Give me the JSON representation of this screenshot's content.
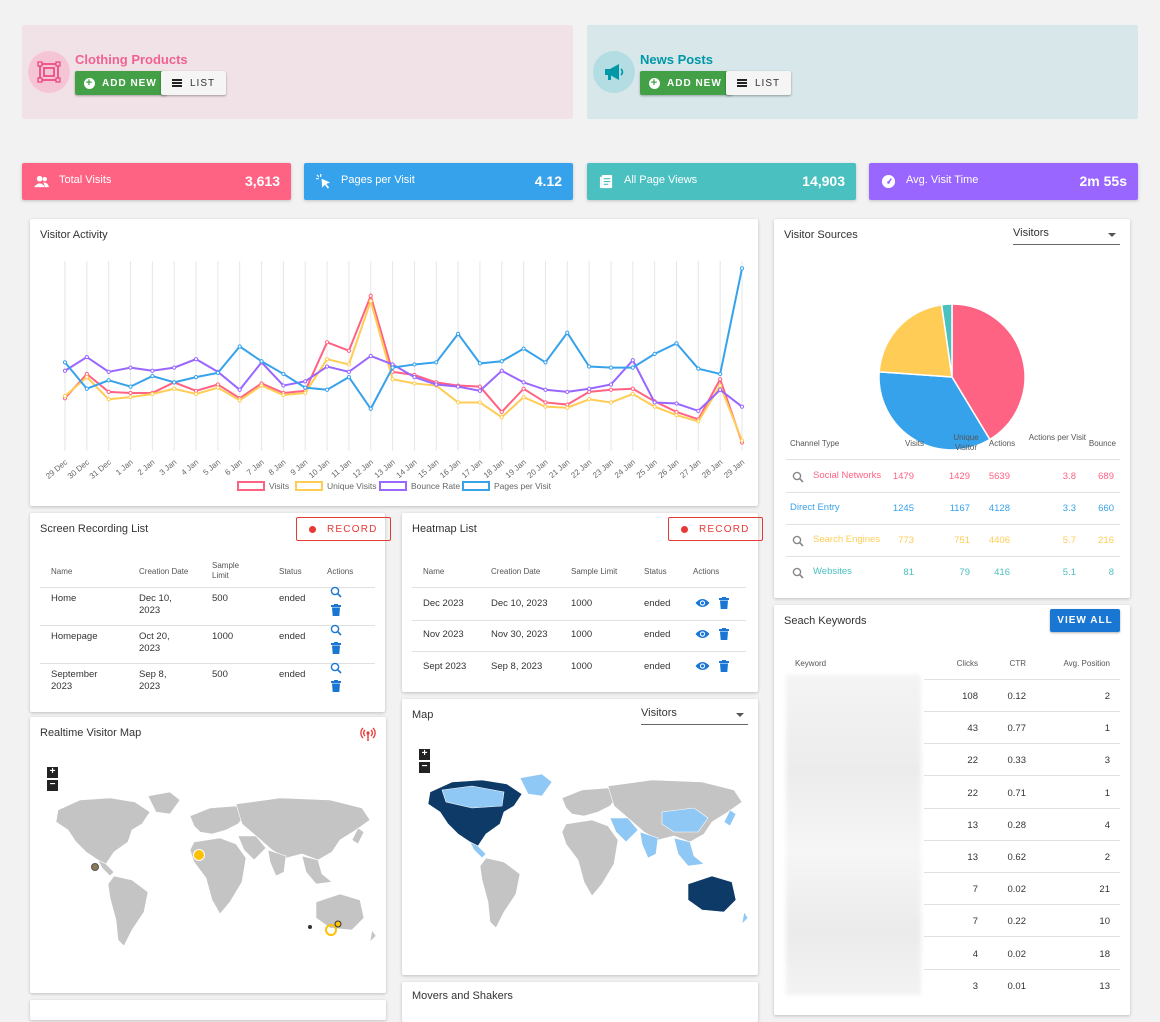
{
  "shortcuts": [
    {
      "title": "Clothing Products",
      "add_label": "ADD NEW",
      "list_label": "LIST",
      "color": "#f06292",
      "bg": "#f1e2e7"
    },
    {
      "title": "News Posts",
      "add_label": "ADD NEW",
      "list_label": "LIST",
      "color": "#0097a7",
      "bg": "#d7e7ea"
    }
  ],
  "stats": [
    {
      "label": "Total Visits",
      "value": "3,613",
      "color": "#ff6384",
      "icon": "people-icon"
    },
    {
      "label": "Pages per Visit",
      "value": "4.12",
      "color": "#36a2eb",
      "icon": "cursor-click-icon"
    },
    {
      "label": "All Page Views",
      "value": "14,903",
      "color": "#4bc0c0",
      "icon": "document-icon"
    },
    {
      "label": "Avg. Visit Time",
      "value": "2m 55s",
      "color": "#9966ff",
      "icon": "speedometer-icon"
    }
  ],
  "visitor_activity": {
    "title": "Visitor Activity",
    "chart_data": {
      "type": "line",
      "categories": [
        "29 Dec",
        "30 Dec",
        "31 Dec",
        "1 Jan",
        "2 Jan",
        "3 Jan",
        "4 Jan",
        "5 Jan",
        "6 Jan",
        "7 Jan",
        "8 Jan",
        "9 Jan",
        "10 Jan",
        "11 Jan",
        "12 Jan",
        "13 Jan",
        "14 Jan",
        "15 Jan",
        "16 Jan",
        "17 Jan",
        "18 Jan",
        "19 Jan",
        "20 Jan",
        "21 Jan",
        "22 Jan",
        "23 Jan",
        "24 Jan",
        "25 Jan",
        "26 Jan",
        "27 Jan",
        "28 Jan",
        "29 Jan"
      ],
      "series": [
        {
          "name": "Visits",
          "color": "#ff6384",
          "values": [
            50,
            73,
            56,
            55,
            55,
            65,
            57,
            63,
            50,
            64,
            55,
            57,
            103,
            95,
            147,
            75,
            72,
            65,
            62,
            61,
            37,
            59,
            46,
            44,
            56,
            58,
            59,
            47,
            37,
            30,
            68,
            8
          ]
        },
        {
          "name": "Unique Visits",
          "color": "#ffcd56",
          "values": [
            52,
            70,
            49,
            51,
            54,
            59,
            54,
            60,
            48,
            62,
            53,
            55,
            87,
            82,
            142,
            68,
            64,
            62,
            46,
            46,
            32,
            51,
            42,
            41,
            49,
            46,
            54,
            42,
            34,
            28,
            62,
            10
          ]
        },
        {
          "name": "Bounce Rate",
          "color": "#9966ff",
          "values": [
            76,
            89,
            75,
            79,
            76,
            79,
            87,
            75,
            58,
            84,
            62,
            66,
            80,
            75,
            90,
            82,
            70,
            63,
            61,
            57,
            76,
            65,
            58,
            56,
            59,
            63,
            86,
            46,
            45,
            38,
            58,
            42
          ]
        },
        {
          "name": "Pages per Visit",
          "color": "#36a2eb",
          "values": [
            84,
            59,
            67,
            61,
            71,
            65,
            70,
            74,
            99,
            85,
            73,
            60,
            58,
            70,
            40,
            79,
            82,
            84,
            111,
            83,
            85,
            97,
            84,
            112,
            80,
            79,
            79,
            92,
            102,
            78,
            73,
            173
          ]
        }
      ]
    }
  },
  "visitor_sources": {
    "title": "Visitor Sources",
    "select": "Visitors",
    "chart_data": {
      "type": "pie",
      "categories": [
        "Social Networks",
        "Direct Entry",
        "Search Engines",
        "Websites"
      ],
      "values": [
        1479,
        1245,
        773,
        81
      ],
      "colors": [
        "#ff6384",
        "#36a2eb",
        "#ffcd56",
        "#4bc0c0"
      ]
    },
    "headers": [
      "Channel Type",
      "Visits",
      "Unique Visitor",
      "Actions",
      "Actions per Visit",
      "Bounce"
    ],
    "rows": [
      {
        "channel": "Social Networks",
        "visits": "1479",
        "unique": "1429",
        "actions": "5639",
        "apv": "3.8",
        "bounce": "689",
        "color": "#ff6384",
        "search": true
      },
      {
        "channel": "Direct Entry",
        "visits": "1245",
        "unique": "1167",
        "actions": "4128",
        "apv": "3.3",
        "bounce": "660",
        "color": "#36a2eb",
        "search": false
      },
      {
        "channel": "Search Engines",
        "visits": "773",
        "unique": "751",
        "actions": "4406",
        "apv": "5.7",
        "bounce": "216",
        "color": "#ffcd56",
        "search": true
      },
      {
        "channel": "Websites",
        "visits": "81",
        "unique": "79",
        "actions": "416",
        "apv": "5.1",
        "bounce": "8",
        "color": "#4bc0c0",
        "search": true
      }
    ]
  },
  "screen_recording": {
    "title": "Screen Recording List",
    "record_label": "RECORD",
    "headers": [
      "Name",
      "Creation Date",
      "Sample Limit",
      "Status",
      "Actions"
    ],
    "rows": [
      {
        "name": "Home",
        "date": "Dec 10, 2023",
        "limit": "500",
        "status": "ended"
      },
      {
        "name": "Homepage",
        "date": "Oct 20, 2023",
        "limit": "1000",
        "status": "ended"
      },
      {
        "name": "September 2023",
        "date": "Sep 8, 2023",
        "limit": "500",
        "status": "ended"
      }
    ]
  },
  "heatmap": {
    "title": "Heatmap List",
    "record_label": "RECORD",
    "headers": [
      "Name",
      "Creation Date",
      "Sample Limit",
      "Status",
      "Actions"
    ],
    "rows": [
      {
        "name": "Dec 2023",
        "date": "Dec 10, 2023",
        "limit": "1000",
        "status": "ended"
      },
      {
        "name": "Nov 2023",
        "date": "Nov 30, 2023",
        "limit": "1000",
        "status": "ended"
      },
      {
        "name": "Sept 2023",
        "date": "Sep 8, 2023",
        "limit": "1000",
        "status": "ended"
      }
    ]
  },
  "keywords": {
    "title": "Seach Keywords",
    "view_all_label": "VIEW ALL",
    "headers": [
      "Keyword",
      "Clicks",
      "CTR",
      "Avg. Position"
    ],
    "rows": [
      {
        "clicks": "108",
        "ctr": "0.12",
        "pos": "2"
      },
      {
        "clicks": "43",
        "ctr": "0.77",
        "pos": "1"
      },
      {
        "clicks": "22",
        "ctr": "0.33",
        "pos": "3"
      },
      {
        "clicks": "22",
        "ctr": "0.71",
        "pos": "1"
      },
      {
        "clicks": "13",
        "ctr": "0.28",
        "pos": "4"
      },
      {
        "clicks": "13",
        "ctr": "0.62",
        "pos": "2"
      },
      {
        "clicks": "7",
        "ctr": "0.02",
        "pos": "21"
      },
      {
        "clicks": "7",
        "ctr": "0.22",
        "pos": "10"
      },
      {
        "clicks": "4",
        "ctr": "0.02",
        "pos": "18"
      },
      {
        "clicks": "3",
        "ctr": "0.01",
        "pos": "13"
      }
    ]
  },
  "realtime_map": {
    "title": "Realtime Visitor Map",
    "zoom_in": "+",
    "zoom_out": "−"
  },
  "map": {
    "title": "Map",
    "select": "Visitors",
    "zoom_in": "+",
    "zoom_out": "−"
  },
  "movers": {
    "title": "Movers and Shakers"
  }
}
